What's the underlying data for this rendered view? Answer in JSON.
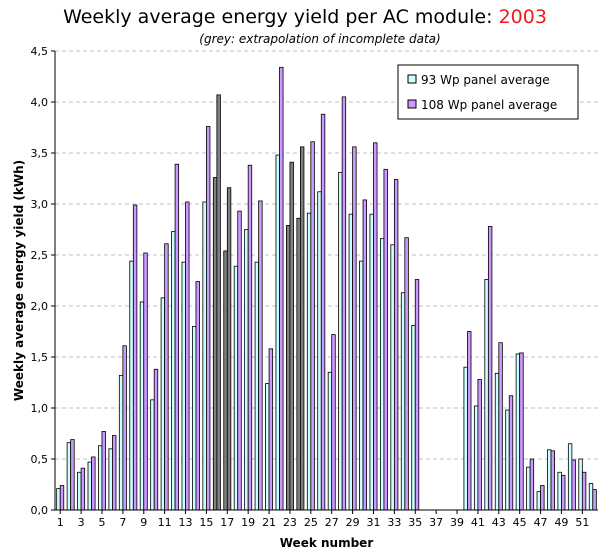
{
  "header": {
    "title_prefix": "Weekly average energy yield per AC module: ",
    "title_year": "2003",
    "subtitle": "(grey: extrapolation of incomplete data)"
  },
  "colors": {
    "series1": "#ccffff",
    "series2": "#cc99ff",
    "extrapolated": "#808080",
    "grid": "#c0c0c0",
    "title_year": "#ee1c1c"
  },
  "chart_data": {
    "type": "bar",
    "xlabel": "Week number",
    "ylabel": "Weekly average energy yield (kWh)",
    "ylim": [
      0,
      4.5
    ],
    "yticks": [
      "0,0",
      "0,5",
      "1,0",
      "1,5",
      "2,0",
      "2,5",
      "3,0",
      "3,5",
      "4,0",
      "4,5"
    ],
    "grid": "horizontal dashed",
    "legend_position": "top-right",
    "categories": [
      1,
      2,
      3,
      4,
      5,
      6,
      7,
      8,
      9,
      10,
      11,
      12,
      13,
      14,
      15,
      16,
      17,
      18,
      19,
      20,
      21,
      22,
      23,
      24,
      25,
      26,
      27,
      28,
      29,
      30,
      31,
      32,
      33,
      34,
      35,
      36,
      37,
      38,
      39,
      40,
      41,
      42,
      43,
      44,
      45,
      46,
      47,
      48,
      49,
      50,
      51,
      52
    ],
    "x_tick_labels": [
      "1",
      "3",
      "5",
      "7",
      "9",
      "11",
      "13",
      "15",
      "17",
      "19",
      "21",
      "23",
      "25",
      "27",
      "29",
      "31",
      "33",
      "35",
      "37",
      "39",
      "41",
      "43",
      "45",
      "47",
      "49",
      "51"
    ],
    "extrapolated_weeks": [
      16,
      17,
      23,
      24
    ],
    "series": [
      {
        "name": "93 Wp panel average",
        "values": [
          0.21,
          0.66,
          0.37,
          0.47,
          0.63,
          0.6,
          1.32,
          2.44,
          2.04,
          1.08,
          2.08,
          2.73,
          2.43,
          1.8,
          3.02,
          3.26,
          2.54,
          2.39,
          2.75,
          2.43,
          1.24,
          3.48,
          2.79,
          2.86,
          2.91,
          3.12,
          1.35,
          3.31,
          2.9,
          2.44,
          2.9,
          2.66,
          2.6,
          2.13,
          1.81,
          null,
          null,
          null,
          null,
          1.4,
          1.02,
          2.26,
          1.34,
          0.98,
          1.53,
          0.42,
          0.18,
          0.59,
          0.37,
          0.65,
          0.5,
          0.26
        ]
      },
      {
        "name": "108 Wp panel average",
        "values": [
          0.24,
          0.69,
          0.41,
          0.52,
          0.77,
          0.73,
          1.61,
          2.99,
          2.52,
          1.38,
          2.61,
          3.39,
          3.02,
          2.24,
          3.76,
          4.07,
          3.16,
          2.93,
          3.38,
          3.03,
          1.58,
          4.34,
          3.41,
          3.56,
          3.61,
          3.88,
          1.72,
          4.05,
          3.56,
          3.04,
          3.6,
          3.34,
          3.24,
          2.67,
          2.26,
          null,
          null,
          null,
          null,
          1.75,
          1.28,
          2.78,
          1.64,
          1.12,
          1.54,
          0.5,
          0.24,
          0.58,
          0.34,
          0.49,
          0.37,
          0.2
        ]
      }
    ]
  }
}
